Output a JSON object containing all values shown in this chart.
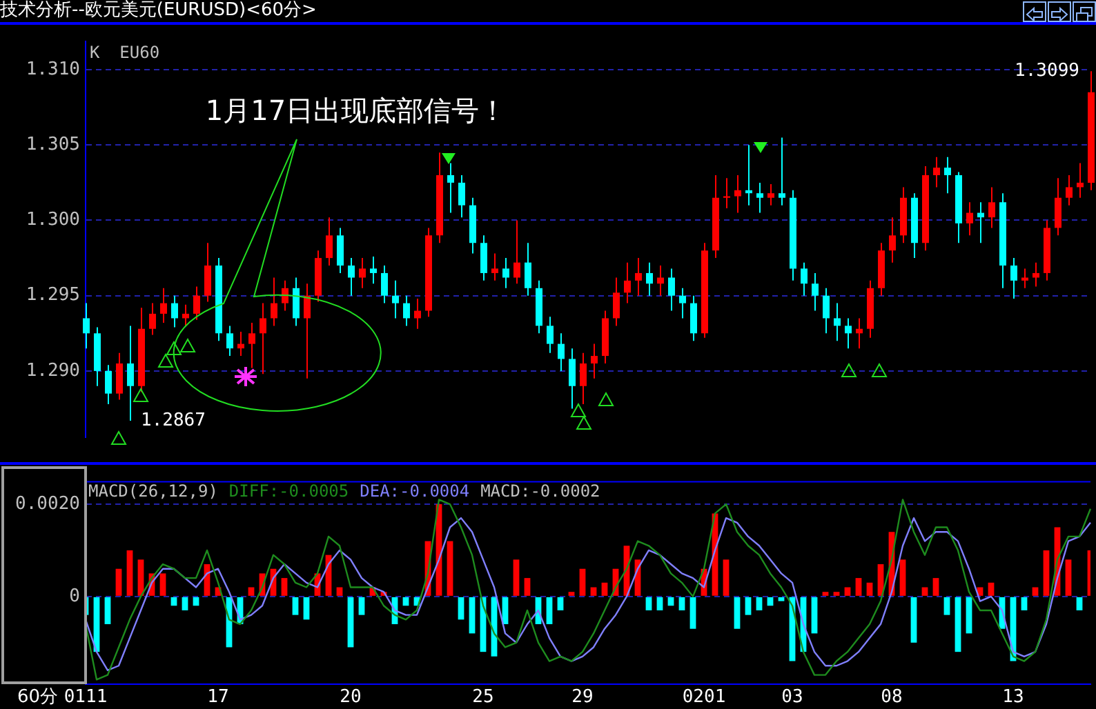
{
  "chart_data": [
    {
      "type": "candlestick",
      "title": "技术分析--欧元美元(EURUSD)<60分>",
      "subtitle": "K  EU60",
      "categories": [
        "0111",
        null,
        null,
        null,
        null,
        null,
        null,
        null,
        null,
        null,
        null,
        null,
        "17",
        null,
        null,
        null,
        null,
        null,
        null,
        null,
        null,
        null,
        null,
        null,
        "20",
        null,
        null,
        null,
        null,
        null,
        null,
        null,
        null,
        null,
        null,
        null,
        "25",
        null,
        null,
        null,
        null,
        null,
        null,
        null,
        null,
        "29",
        null,
        null,
        null,
        null,
        null,
        null,
        null,
        null,
        null,
        null,
        "0201",
        null,
        null,
        null,
        null,
        null,
        null,
        null,
        "03",
        null,
        null,
        null,
        null,
        null,
        null,
        null,
        null,
        "08",
        null,
        null,
        null,
        null,
        null,
        null,
        null,
        null,
        null,
        null,
        "13",
        null,
        null,
        null,
        null,
        null,
        null,
        null
      ],
      "ohlc": [
        [
          1.2935,
          1.2945,
          1.2915,
          1.2925
        ],
        [
          1.2925,
          1.2929,
          1.289,
          1.29
        ],
        [
          1.29,
          1.2904,
          1.2878,
          1.2885
        ],
        [
          1.2885,
          1.2912,
          1.2881,
          1.2905
        ],
        [
          1.2905,
          1.293,
          1.2867,
          1.289
        ],
        [
          1.289,
          1.2942,
          1.2886,
          1.2928
        ],
        [
          1.2928,
          1.2945,
          1.2924,
          1.2938
        ],
        [
          1.2938,
          1.2955,
          1.2932,
          1.2945
        ],
        [
          1.2945,
          1.295,
          1.2929,
          1.2935
        ],
        [
          1.2935,
          1.2944,
          1.293,
          1.2938
        ],
        [
          1.2938,
          1.2956,
          1.2934,
          1.295
        ],
        [
          1.295,
          1.2985,
          1.2946,
          1.297
        ],
        [
          1.297,
          1.2975,
          1.292,
          1.2925
        ],
        [
          1.2925,
          1.293,
          1.291,
          1.2915
        ],
        [
          1.2915,
          1.2926,
          1.291,
          1.2918
        ],
        [
          1.2918,
          1.2932,
          1.2902,
          1.2925
        ],
        [
          1.2925,
          1.2945,
          1.2898,
          1.2935
        ],
        [
          1.2935,
          1.2962,
          1.293,
          1.2945
        ],
        [
          1.2945,
          1.296,
          1.294,
          1.2955
        ],
        [
          1.2955,
          1.2962,
          1.293,
          1.2935
        ],
        [
          1.2935,
          1.2958,
          1.2895,
          1.295
        ],
        [
          1.295,
          1.298,
          1.2946,
          1.2975
        ],
        [
          1.2975,
          1.3002,
          1.297,
          1.299
        ],
        [
          1.299,
          1.2995,
          1.2965,
          1.297
        ],
        [
          1.297,
          1.2975,
          1.295,
          1.2962
        ],
        [
          1.2962,
          1.2975,
          1.2955,
          1.2968
        ],
        [
          1.2968,
          1.2976,
          1.2958,
          1.2965
        ],
        [
          1.2965,
          1.297,
          1.2945,
          1.295
        ],
        [
          1.295,
          1.296,
          1.2935,
          1.2945
        ],
        [
          1.2945,
          1.295,
          1.293,
          1.2935
        ],
        [
          1.2935,
          1.2948,
          1.2928,
          1.294
        ],
        [
          1.294,
          1.2995,
          1.2936,
          1.299
        ],
        [
          1.299,
          1.3045,
          1.2985,
          1.303
        ],
        [
          1.303,
          1.3038,
          1.3005,
          1.3025
        ],
        [
          1.3025,
          1.303,
          1.3002,
          1.301
        ],
        [
          1.301,
          1.3015,
          1.2978,
          1.2985
        ],
        [
          1.2985,
          1.299,
          1.296,
          1.2965
        ],
        [
          1.2965,
          1.2978,
          1.296,
          1.2968
        ],
        [
          1.2968,
          1.2975,
          1.2955,
          1.2962
        ],
        [
          1.2962,
          1.3,
          1.2958,
          1.2972
        ],
        [
          1.2972,
          1.2985,
          1.295,
          1.2955
        ],
        [
          1.2955,
          1.296,
          1.2925,
          1.293
        ],
        [
          1.293,
          1.2936,
          1.2912,
          1.2918
        ],
        [
          1.2918,
          1.2925,
          1.29,
          1.2908
        ],
        [
          1.2908,
          1.2915,
          1.2875,
          1.289
        ],
        [
          1.289,
          1.2912,
          1.2878,
          1.2905
        ],
        [
          1.2905,
          1.2918,
          1.2895,
          1.291
        ],
        [
          1.291,
          1.294,
          1.2905,
          1.2935
        ],
        [
          1.2935,
          1.2962,
          1.293,
          1.2952
        ],
        [
          1.2952,
          1.2972,
          1.2945,
          1.296
        ],
        [
          1.296,
          1.2975,
          1.295,
          1.2965
        ],
        [
          1.2965,
          1.2972,
          1.295,
          1.2958
        ],
        [
          1.2958,
          1.297,
          1.295,
          1.2962
        ],
        [
          1.2962,
          1.2968,
          1.294,
          1.295
        ],
        [
          1.295,
          1.2955,
          1.2935,
          1.2945
        ],
        [
          1.2945,
          1.295,
          1.292,
          1.2925
        ],
        [
          1.2925,
          1.2985,
          1.2922,
          1.298
        ],
        [
          1.298,
          1.303,
          1.2975,
          1.3015
        ],
        [
          1.3015,
          1.3028,
          1.3008,
          1.3016
        ],
        [
          1.3016,
          1.303,
          1.3005,
          1.302
        ],
        [
          1.302,
          1.305,
          1.301,
          1.3018
        ],
        [
          1.3018,
          1.3025,
          1.3005,
          1.3015
        ],
        [
          1.3015,
          1.3024,
          1.301,
          1.3018
        ],
        [
          1.3018,
          1.3055,
          1.301,
          1.3015
        ],
        [
          1.3015,
          1.302,
          1.296,
          1.2968
        ],
        [
          1.2968,
          1.2972,
          1.295,
          1.2958
        ],
        [
          1.2958,
          1.2965,
          1.294,
          1.295
        ],
        [
          1.295,
          1.2955,
          1.2925,
          1.2935
        ],
        [
          1.2935,
          1.2945,
          1.292,
          1.293
        ],
        [
          1.293,
          1.2935,
          1.2915,
          1.2925
        ],
        [
          1.2925,
          1.2935,
          1.2915,
          1.2928
        ],
        [
          1.2928,
          1.296,
          1.2922,
          1.2955
        ],
        [
          1.2955,
          1.2985,
          1.295,
          1.298
        ],
        [
          1.298,
          1.3002,
          1.2972,
          1.299
        ],
        [
          1.299,
          1.3022,
          1.2985,
          1.3015
        ],
        [
          1.3015,
          1.3018,
          1.2975,
          1.2985
        ],
        [
          1.2985,
          1.3036,
          1.298,
          1.303
        ],
        [
          1.303,
          1.3042,
          1.3022,
          1.3035
        ],
        [
          1.3035,
          1.3042,
          1.3018,
          1.303
        ],
        [
          1.303,
          1.3032,
          1.2985,
          1.2998
        ],
        [
          1.2998,
          1.3012,
          1.299,
          1.3005
        ],
        [
          1.3005,
          1.3012,
          1.2985,
          1.3002
        ],
        [
          1.3002,
          1.3022,
          1.2995,
          1.3012
        ],
        [
          1.3012,
          1.3018,
          1.2955,
          1.297
        ],
        [
          1.297,
          1.2975,
          1.2948,
          1.296
        ],
        [
          1.296,
          1.2968,
          1.2955,
          1.2962
        ],
        [
          1.2962,
          1.2972,
          1.2956,
          1.2965
        ],
        [
          1.2965,
          1.3,
          1.296,
          1.2995
        ],
        [
          1.2995,
          1.3028,
          1.299,
          1.3015
        ],
        [
          1.3015,
          1.303,
          1.301,
          1.3022
        ],
        [
          1.3022,
          1.3038,
          1.3015,
          1.3025
        ],
        [
          1.3025,
          1.3099,
          1.302,
          1.3085
        ]
      ],
      "colors": [
        "#00ffff",
        "#00ffff",
        "#00ffff",
        "#ff0000",
        "#00ffff",
        "#ff0000",
        "#ff0000",
        "#ff0000",
        "#00ffff",
        "#ff0000",
        "#ff0000",
        "#ff0000",
        "#00ffff",
        "#00ffff",
        "#ff0000",
        "#ff0000",
        "#ff0000",
        "#ff0000",
        "#ff0000",
        "#00ffff",
        "#ff0000",
        "#ff0000",
        "#ff0000",
        "#00ffff",
        "#00ffff",
        "#ff0000",
        "#00ffff",
        "#00ffff",
        "#00ffff",
        "#00ffff",
        "#ff0000",
        "#ff0000",
        "#ff0000",
        "#00ffff",
        "#00ffff",
        "#00ffff",
        "#00ffff",
        "#ff0000",
        "#00ffff",
        "#ff0000",
        "#00ffff",
        "#00ffff",
        "#00ffff",
        "#00ffff",
        "#00ffff",
        "#ff0000",
        "#ff0000",
        "#ff0000",
        "#ff0000",
        "#ff0000",
        "#ff0000",
        "#00ffff",
        "#ff0000",
        "#00ffff",
        "#00ffff",
        "#00ffff",
        "#ff0000",
        "#ff0000",
        "#ff0000",
        "#ff0000",
        "#00ffff",
        "#00ffff",
        "#ff0000",
        "#00ffff",
        "#00ffff",
        "#00ffff",
        "#00ffff",
        "#00ffff",
        "#00ffff",
        "#00ffff",
        "#ff0000",
        "#ff0000",
        "#ff0000",
        "#ff0000",
        "#ff0000",
        "#00ffff",
        "#ff0000",
        "#ff0000",
        "#00ffff",
        "#00ffff",
        "#ff0000",
        "#00ffff",
        "#ff0000",
        "#00ffff",
        "#00ffff",
        "#ff0000",
        "#ff0000",
        "#ff0000",
        "#ff0000",
        "#ff0000",
        "#ff0000",
        "#ff0000"
      ],
      "ylim": [
        1.2856,
        1.3119
      ],
      "yticks": [
        {
          "value": 1.29,
          "label": "1.290"
        },
        {
          "value": 1.295,
          "label": "1.295"
        },
        {
          "value": 1.3,
          "label": "1.300"
        },
        {
          "value": 1.305,
          "label": "1.305"
        },
        {
          "value": 1.31,
          "label": "1.310"
        }
      ],
      "grid": "y",
      "tick_labels": "y",
      "annotations": [
        "1月17日出现底部信号！",
        "1.2867",
        "1.3099"
      ]
    },
    {
      "type": "bar",
      "xlabel": "60分",
      "categories": [
        "0111",
        null,
        null,
        null,
        null,
        null,
        null,
        null,
        null,
        null,
        null,
        null,
        "17",
        null,
        null,
        null,
        null,
        null,
        null,
        null,
        null,
        null,
        null,
        null,
        "20",
        null,
        null,
        null,
        null,
        null,
        null,
        null,
        null,
        null,
        null,
        null,
        "25",
        null,
        null,
        null,
        null,
        null,
        null,
        null,
        null,
        "29",
        null,
        null,
        null,
        null,
        null,
        null,
        null,
        null,
        null,
        null,
        "0201",
        null,
        null,
        null,
        null,
        null,
        null,
        null,
        "03",
        null,
        null,
        null,
        null,
        null,
        null,
        null,
        null,
        "08",
        null,
        null,
        null,
        null,
        null,
        null,
        null,
        null,
        null,
        null,
        "13",
        null,
        null,
        null,
        null,
        null,
        null,
        null
      ],
      "series": [
        {
          "type": "bar",
          "values": [
            -0.0004,
            -0.0012,
            -0.0006,
            0.0006,
            0.001,
            0.0008,
            0.0005,
            0.0005,
            -0.0002,
            -0.0003,
            -0.0002,
            0.0007,
            0.0002,
            -0.0011,
            -0.0006,
            0.0002,
            0.0005,
            0.0006,
            0.0004,
            -0.0004,
            -0.0005,
            0.0005,
            0.0009,
            0.0002,
            -0.0011,
            -0.0004,
            0.0002,
            0.0001,
            -0.0006,
            -0.0002,
            -0.0002,
            0.0012,
            0.002,
            0.0012,
            -0.0005,
            -0.0008,
            -0.0012,
            -0.0013,
            -0.0006,
            0.0008,
            0.0004,
            -0.0006,
            -0.0006,
            -0.0003,
            0.0001,
            0.0006,
            0.0002,
            0.0003,
            0.0006,
            0.0011,
            0.0008,
            -0.0003,
            -0.0003,
            -0.0002,
            -0.0003,
            -0.0007,
            0.0006,
            0.0018,
            0.0008,
            -0.0007,
            -0.0004,
            -0.0003,
            -0.0002,
            -0.0001,
            -0.0014,
            -0.0012,
            -0.0008,
            0.0001,
            0.0001,
            0.0002,
            0.0004,
            0.0003,
            0.0007,
            0.0014,
            0.0008,
            -0.001,
            0.0002,
            0.0004,
            -0.0004,
            -0.0012,
            -0.0008,
            0.0002,
            0.0003,
            -0.0007,
            -0.0014,
            -0.0003,
            0.0002,
            0.001,
            0.0015,
            0.0008,
            -0.0003,
            0.001
          ],
          "colors": [
            "#00ffff",
            "#00ffff",
            "#00ffff",
            "#ff0000",
            "#ff0000",
            "#ff0000",
            "#ff0000",
            "#ff0000",
            "#00ffff",
            "#00ffff",
            "#00ffff",
            "#ff0000",
            "#ff0000",
            "#00ffff",
            "#00ffff",
            "#ff0000",
            "#ff0000",
            "#ff0000",
            "#ff0000",
            "#00ffff",
            "#00ffff",
            "#ff0000",
            "#ff0000",
            "#ff0000",
            "#00ffff",
            "#00ffff",
            "#ff0000",
            "#ff0000",
            "#00ffff",
            "#00ffff",
            "#00ffff",
            "#ff0000",
            "#ff0000",
            "#ff0000",
            "#00ffff",
            "#00ffff",
            "#00ffff",
            "#00ffff",
            "#00ffff",
            "#ff0000",
            "#ff0000",
            "#00ffff",
            "#00ffff",
            "#00ffff",
            "#ff0000",
            "#ff0000",
            "#ff0000",
            "#ff0000",
            "#ff0000",
            "#ff0000",
            "#ff0000",
            "#00ffff",
            "#00ffff",
            "#00ffff",
            "#00ffff",
            "#00ffff",
            "#ff0000",
            "#ff0000",
            "#ff0000",
            "#00ffff",
            "#00ffff",
            "#00ffff",
            "#00ffff",
            "#00ffff",
            "#00ffff",
            "#00ffff",
            "#00ffff",
            "#ff0000",
            "#ff0000",
            "#ff0000",
            "#ff0000",
            "#ff0000",
            "#ff0000",
            "#ff0000",
            "#ff0000",
            "#00ffff",
            "#ff0000",
            "#ff0000",
            "#00ffff",
            "#00ffff",
            "#00ffff",
            "#ff0000",
            "#ff0000",
            "#00ffff",
            "#00ffff",
            "#00ffff",
            "#ff0000",
            "#ff0000",
            "#ff0000",
            "#ff0000",
            "#00ffff",
            "#ff0000"
          ]
        },
        {
          "type": "line",
          "color": "#1e8c1e",
          "values": [
            -0.0006,
            -0.0018,
            -0.0017,
            -0.0011,
            -0.0005,
            0,
            0.0004,
            0.0007,
            0.0006,
            0.0004,
            0.0004,
            0.001,
            0.0003,
            -0.0005,
            -0.0006,
            -0.0003,
            0.0002,
            0.0009,
            0.0007,
            0.0003,
            0.0002,
            0.0005,
            0.0013,
            0.0011,
            0.0002,
            0.0002,
            0.0002,
            -0.0002,
            -0.0004,
            -0.0005,
            -0.0003,
            0.0005,
            0.0021,
            0.002,
            0.0015,
            0.0009,
            -0.0002,
            -0.0008,
            -0.0011,
            -0.001,
            -0.0003,
            -0.001,
            -0.0014,
            -0.0013,
            -0.0014,
            -0.0012,
            -0.0008,
            -0.0003,
            0.0002,
            0.0006,
            0.0012,
            0.0011,
            0.0009,
            0.0005,
            0.0003,
            0,
            0.0006,
            0.0018,
            0.002,
            0.0014,
            0.0011,
            0.0009,
            0.0005,
            0.0002,
            -0.0002,
            -0.0012,
            -0.0017,
            -0.0017,
            -0.0014,
            -0.0012,
            -0.0009,
            -0.0006,
            -0.0001,
            0.0008,
            0.0021,
            0.0014,
            0.0009,
            0.0015,
            0.0015,
            0.001,
            0.0001,
            -0.0003,
            -0.0003,
            -0.0008,
            -0.0013,
            -0.0014,
            -0.0012,
            -0.0005,
            0.0008,
            0.0013,
            0.0013,
            0.0019
          ]
        },
        {
          "type": "line",
          "color": "#8080ff",
          "values": [
            -0.0005,
            -0.0012,
            -0.0016,
            -0.0015,
            -0.0009,
            -0.0003,
            0.0003,
            0.0006,
            0.0006,
            0.0004,
            0.0002,
            0.0005,
            0.0006,
            0.0001,
            -0.0005,
            -0.0004,
            -0.0002,
            0.0004,
            0.0007,
            0.0005,
            0.0003,
            0.0002,
            0.0007,
            0.001,
            0.0008,
            0.0004,
            0.0002,
            0.0001,
            -0.0003,
            -0.0004,
            -0.0004,
            0.0002,
            0.0008,
            0.0015,
            0.0017,
            0.0014,
            0.0008,
            0.0002,
            -0.0008,
            -0.001,
            -0.0006,
            -0.0003,
            -0.0009,
            -0.0013,
            -0.0014,
            -0.0013,
            -0.0011,
            -0.0007,
            -0.0004,
            0,
            0.0006,
            0.001,
            0.0009,
            0.0007,
            0.0005,
            0.0004,
            0.0002,
            0.001,
            0.0017,
            0.0016,
            0.0013,
            0.0011,
            0.0008,
            0.0005,
            0.0003,
            -0.0006,
            -0.0012,
            -0.0015,
            -0.0015,
            -0.0014,
            -0.0012,
            -0.0009,
            -0.0006,
            0.0001,
            0.0011,
            0.0017,
            0.0012,
            0.0014,
            0.0014,
            0.0012,
            0.0006,
            -0.0001,
            0,
            -0.0003,
            -0.0012,
            -0.0013,
            -0.0012,
            -0.0006,
            0.0004,
            0.0012,
            0.0013,
            0.0016
          ]
        }
      ],
      "ylim": [
        -0.0019,
        0.0025
      ],
      "yticks": [
        0,
        {
          "value": 0.002,
          "label": "0.0020"
        }
      ],
      "grid": "y",
      "annotations": [
        "MACD(26,12,9)",
        "DIFF:-0.0005",
        "DEA:-0.0004",
        "MACD:-0.0002"
      ]
    }
  ]
}
